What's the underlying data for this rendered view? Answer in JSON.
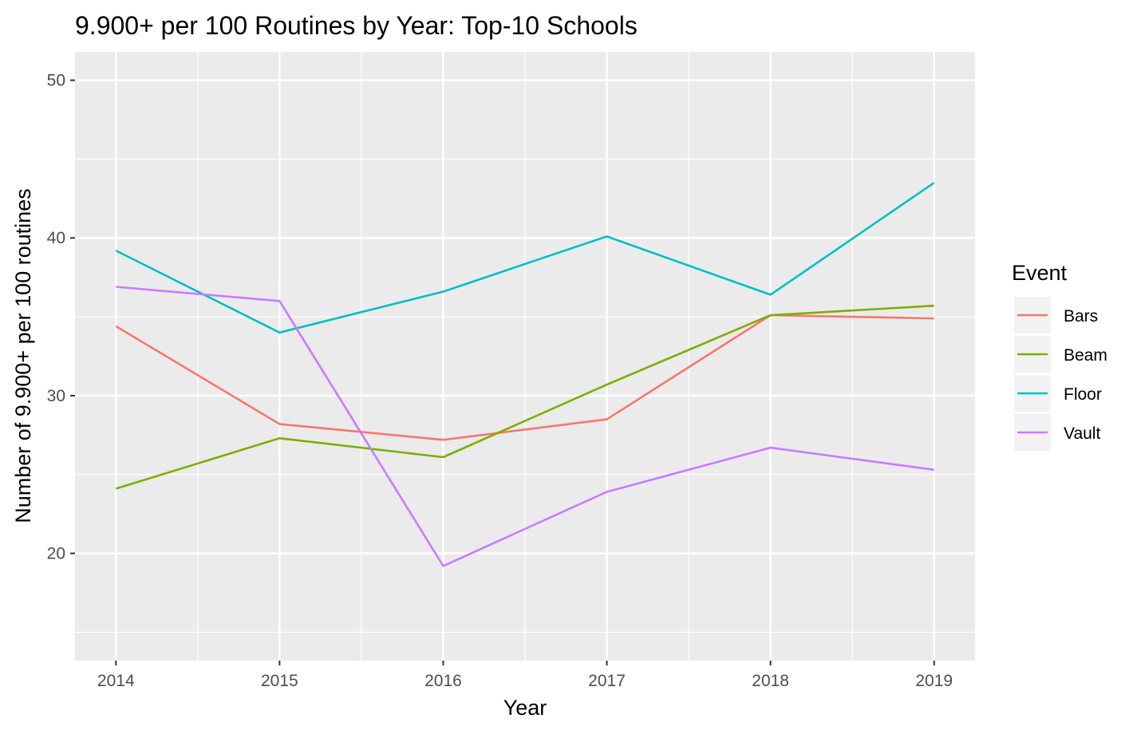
{
  "chart_data": {
    "type": "line",
    "title": "9.900+ per 100 Routines by Year: Top-10 Schools",
    "xlabel": "Year",
    "ylabel": "Number of 9.900+ per 100 routines",
    "x": [
      2014,
      2015,
      2016,
      2017,
      2018,
      2019
    ],
    "xlim": [
      2013.75,
      2019.25
    ],
    "ylim": [
      13.2,
      51.8
    ],
    "yticks": [
      20,
      30,
      40,
      50
    ],
    "grid": true,
    "legend": {
      "title": "Event",
      "position": "right"
    },
    "series": [
      {
        "name": "Bars",
        "color": "#F8766D",
        "values": [
          34.4,
          28.2,
          27.2,
          28.5,
          35.1,
          34.9
        ]
      },
      {
        "name": "Beam",
        "color": "#7CAE00",
        "values": [
          24.1,
          27.3,
          26.1,
          30.7,
          35.1,
          35.7
        ]
      },
      {
        "name": "Floor",
        "color": "#00BFC4",
        "values": [
          39.2,
          34.0,
          36.6,
          40.1,
          36.4,
          43.5
        ]
      },
      {
        "name": "Vault",
        "color": "#C77CFF",
        "values": [
          36.9,
          36.0,
          19.2,
          23.9,
          26.7,
          25.3
        ]
      }
    ]
  }
}
